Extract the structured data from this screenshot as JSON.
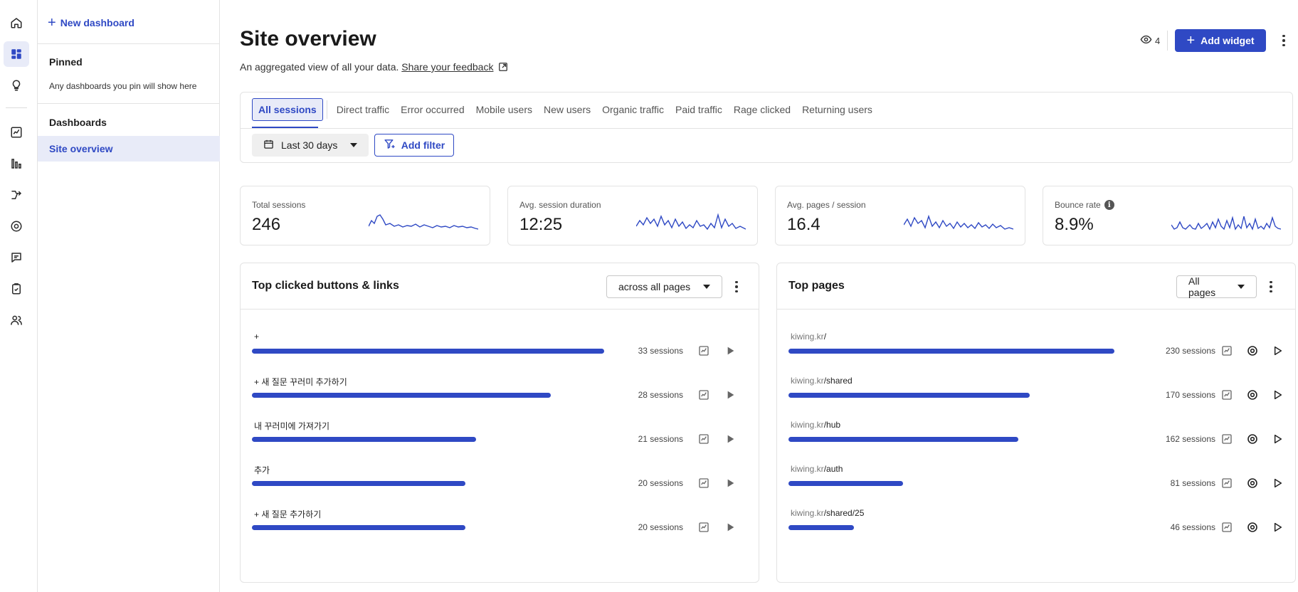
{
  "sidebar": {
    "new_dashboard": "New dashboard",
    "pinned_heading": "Pinned",
    "pinned_note": "Any dashboards you pin will show here",
    "dashboards_heading": "Dashboards",
    "active_item": "Site overview"
  },
  "header": {
    "title": "Site overview",
    "subtitle": "An aggregated view of all your data.",
    "feedback_link": "Share your feedback",
    "viewer_count": "4",
    "add_widget": "Add widget"
  },
  "tabs": [
    "All sessions",
    "Direct traffic",
    "Error occurred",
    "Mobile users",
    "New users",
    "Organic traffic",
    "Paid traffic",
    "Rage clicked",
    "Returning users"
  ],
  "filters": {
    "date_range": "Last 30 days",
    "add_filter": "Add filter"
  },
  "metrics": [
    {
      "label": "Total sessions",
      "value": "246"
    },
    {
      "label": "Avg. session duration",
      "value": "12:25"
    },
    {
      "label": "Avg. pages / session",
      "value": "16.4"
    },
    {
      "label": "Bounce rate",
      "value": "8.9%"
    }
  ],
  "top_clicked": {
    "title": "Top clicked buttons & links",
    "scope": "across all pages",
    "rows": [
      {
        "label": "+",
        "sessions": 33,
        "count_text": "33 sessions"
      },
      {
        "label": "+ 새 질문 꾸러미 추가하기",
        "sessions": 28,
        "count_text": "28 sessions"
      },
      {
        "label": "내 꾸러미에 가져가기",
        "sessions": 21,
        "count_text": "21 sessions"
      },
      {
        "label": "추가",
        "sessions": 20,
        "count_text": "20 sessions"
      },
      {
        "label": "+ 새 질문 추가하기",
        "sessions": 20,
        "count_text": "20 sessions"
      }
    ]
  },
  "top_pages": {
    "title": "Top pages",
    "scope": "All pages",
    "rows": [
      {
        "domain": "kiwing.kr",
        "path": "/",
        "sessions": 230,
        "count_text": "230 sessions"
      },
      {
        "domain": "kiwing.kr",
        "path": "/shared",
        "sessions": 170,
        "count_text": "170 sessions"
      },
      {
        "domain": "kiwing.kr",
        "path": "/hub",
        "sessions": 162,
        "count_text": "162 sessions"
      },
      {
        "domain": "kiwing.kr",
        "path": "/auth",
        "sessions": 81,
        "count_text": "81 sessions"
      },
      {
        "domain": "kiwing.kr",
        "path": "/shared/25",
        "sessions": 46,
        "count_text": "46 sessions"
      }
    ]
  },
  "colors": {
    "accent": "#2f49c4",
    "accent_bg": "#e8ebf8"
  }
}
